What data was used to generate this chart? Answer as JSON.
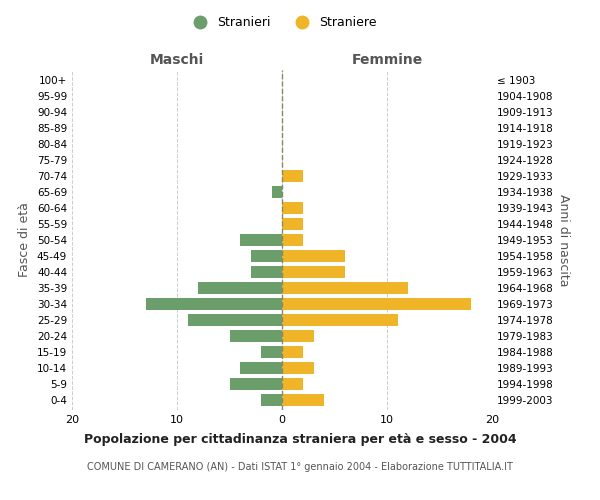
{
  "age_groups": [
    "0-4",
    "5-9",
    "10-14",
    "15-19",
    "20-24",
    "25-29",
    "30-34",
    "35-39",
    "40-44",
    "45-49",
    "50-54",
    "55-59",
    "60-64",
    "65-69",
    "70-74",
    "75-79",
    "80-84",
    "85-89",
    "90-94",
    "95-99",
    "100+"
  ],
  "birth_years": [
    "1999-2003",
    "1994-1998",
    "1989-1993",
    "1984-1988",
    "1979-1983",
    "1974-1978",
    "1969-1973",
    "1964-1968",
    "1959-1963",
    "1954-1958",
    "1949-1953",
    "1944-1948",
    "1939-1943",
    "1934-1938",
    "1929-1933",
    "1924-1928",
    "1919-1923",
    "1914-1918",
    "1909-1913",
    "1904-1908",
    "≤ 1903"
  ],
  "maschi": [
    2,
    5,
    4,
    2,
    5,
    9,
    13,
    8,
    3,
    3,
    4,
    0,
    0,
    1,
    0,
    0,
    0,
    0,
    0,
    0,
    0
  ],
  "femmine": [
    4,
    2,
    3,
    2,
    3,
    11,
    18,
    12,
    6,
    6,
    2,
    2,
    2,
    0,
    2,
    0,
    0,
    0,
    0,
    0,
    0
  ],
  "color_maschi": "#6b9e6b",
  "color_femmine": "#f0b429",
  "title": "Popolazione per cittadinanza straniera per età e sesso - 2004",
  "subtitle": "COMUNE DI CAMERANO (AN) - Dati ISTAT 1° gennaio 2004 - Elaborazione TUTTITALIA.IT",
  "xlabel_left": "Maschi",
  "xlabel_right": "Femmine",
  "ylabel_left": "Fasce di età",
  "ylabel_right": "Anni di nascita",
  "legend_maschi": "Stranieri",
  "legend_femmine": "Straniere",
  "xlim": 20,
  "bg_color": "#ffffff",
  "grid_color": "#cccccc"
}
